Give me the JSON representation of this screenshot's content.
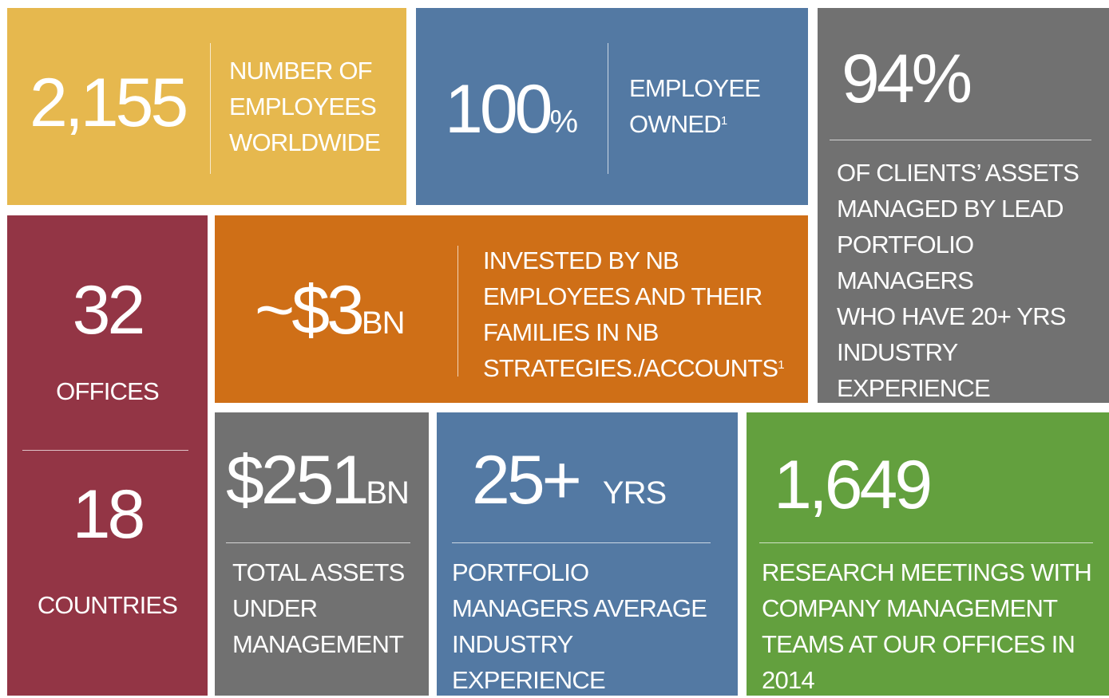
{
  "tiles": [
    {
      "figure": "2,155",
      "label": [
        "NUMBER OF",
        "EMPLOYEES",
        "WORLDWIDE"
      ]
    },
    {
      "figure": "100",
      "unit": "%",
      "label": [
        "EMPLOYEE",
        "OWNED"
      ],
      "sup": "1"
    },
    {
      "figure": "94%",
      "label": [
        "OF CLIENTS’ ASSETS",
        "MANAGED BY LEAD",
        "PORTFOLIO",
        "MANAGERS",
        "WHO HAVE 20+ YRS",
        "INDUSTRY",
        "EXPERIENCE"
      ]
    },
    {
      "figure": "32",
      "label": [
        "OFFICES"
      ],
      "figure2": "18",
      "label2": [
        "COUNTRIES"
      ]
    },
    {
      "figure": "~$3",
      "unit": "BN",
      "label": [
        "INVESTED BY NB",
        "EMPLOYEES AND THEIR",
        "FAMILIES IN NB",
        "STRATEGIES./ACCOUNTS"
      ],
      "sup": "1"
    },
    {
      "figure": "$251",
      "unit": "BN",
      "label": [
        "TOTAL ASSETS",
        "UNDER",
        "MANAGEMENT"
      ]
    },
    {
      "figure": "25+",
      "unit": "YRS",
      "label": [
        "PORTFOLIO",
        "MANAGERS AVERAGE",
        "INDUSTRY",
        "EXPERIENCE"
      ]
    },
    {
      "figure": "1,649",
      "label": [
        "RESEARCH MEETINGS WITH",
        "COMPANY MANAGEMENT",
        "TEAMS AT OUR OFFICES IN",
        "2014"
      ]
    }
  ]
}
